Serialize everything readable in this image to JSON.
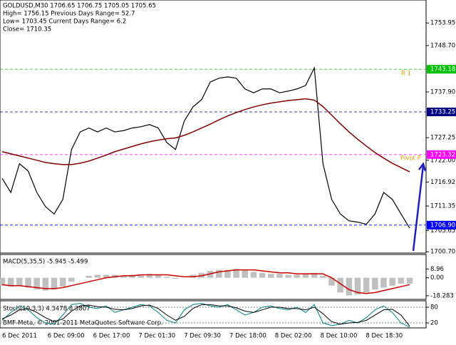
{
  "header": [
    "GOLDUSD,M30  1706.65 1706.75 1705.05 1705.65",
    "High= 1756.15    Previous Days Range= 52.7",
    "Low= 1703.45    Current Days Range= 6.2",
    "Close= 1710.35"
  ],
  "copyright": "BMF-Meta, © 2001-2011 MetaQuotes Software Corp.",
  "time_axis": [
    "6 Dec 2011",
    "6 Dec 09:00",
    "6 Dec 17:00",
    "7 Dec 01:30",
    "7 Dec 09:30",
    "7 Dec 18:00",
    "8 Dec 02:00",
    "8 Dec 10:00",
    "8 Dec 18:30"
  ],
  "chart_data": [
    {
      "type": "line",
      "ylim": [
        1700.4,
        1759.3
      ],
      "yticks": [
        1753.95,
        {
          "value": 1748.7,
          "label": "1748.70"
        },
        {
          "value": 1737.9,
          "label": "1737.90"
        },
        1727.25,
        {
          "value": 1722,
          "label": "1722.00"
        },
        1716.92,
        1711.35,
        1705.65,
        {
          "value": 1700.7,
          "label": "1700.70"
        }
      ],
      "price_levels": [
        {
          "value": 1743.18,
          "color": "#00c000"
        },
        {
          "value": 1733.25,
          "color": "#000080"
        },
        {
          "value": 1723.32,
          "color": "#ff00ff"
        },
        {
          "value": 1706.9,
          "label": "1706.90",
          "color": "#0000ff"
        }
      ],
      "annotations": [
        "R 1",
        "Pivot P"
      ],
      "series": [
        {
          "color": "#000000",
          "values": [
            1717.8,
            1714.5,
            1721.2,
            1719.5,
            1714.5,
            1711.2,
            1709.5,
            1712.9,
            1724.5,
            1728.6,
            1729.5,
            1728.6,
            1729.5,
            1728.6,
            1728.9,
            1729.5,
            1729.8,
            1730.3,
            1729.5,
            1726.1,
            1724.5,
            1731.1,
            1734.4,
            1736.1,
            1740.2,
            1741.1,
            1741.4,
            1741.1,
            1738.6,
            1737.7,
            1738.6,
            1738.6,
            1737.7,
            1738.1,
            1738.6,
            1739.4,
            1743.5,
            1721.2,
            1712.9,
            1709.5,
            1707.9,
            1707.6,
            1707.1,
            1709.5,
            1714.5,
            1712.9,
            1709.5,
            1706.2
          ]
        },
        {
          "color": "#800000",
          "values": [
            1724.0,
            1723.5,
            1723.0,
            1722.5,
            1722.0,
            1721.5,
            1721.2,
            1721.0,
            1721.0,
            1721.3,
            1721.8,
            1722.5,
            1723.2,
            1724.0,
            1724.6,
            1725.2,
            1725.8,
            1726.3,
            1726.7,
            1727.0,
            1727.2,
            1727.8,
            1728.6,
            1729.5,
            1730.4,
            1731.4,
            1732.3,
            1733.1,
            1733.8,
            1734.4,
            1734.9,
            1735.3,
            1735.6,
            1735.9,
            1736.1,
            1736.3,
            1736.0,
            1734.5,
            1732.5,
            1730.5,
            1728.6,
            1726.9,
            1725.3,
            1723.8,
            1722.5,
            1721.3,
            1720.3,
            1719.3
          ]
        }
      ]
    },
    {
      "type": "macd",
      "title": "MACD(5,35,5) -5.945 -5.499",
      "ylim": [
        -22,
        23.7
      ],
      "yticks": [
        8.96,
        {
          "value": 0,
          "label": "0.00"
        },
        -18.283
      ],
      "histogram": {
        "color": "#c0c0c0",
        "values": [
          -8,
          -9,
          -8,
          -10,
          -12,
          -13,
          -12,
          -9,
          -4,
          0,
          2,
          3,
          3,
          3,
          2,
          3,
          3,
          4,
          3,
          1,
          -1,
          0,
          3,
          5,
          7,
          8,
          8,
          9,
          8,
          6,
          5,
          4,
          4,
          3,
          3,
          4,
          5,
          2,
          -8,
          -15,
          -18,
          -17,
          -15,
          -12,
          -10,
          -8,
          -6,
          -6
        ]
      },
      "signal": {
        "color": "#cc0000",
        "values": [
          -7,
          -8,
          -8,
          -9,
          -10,
          -11,
          -11,
          -10,
          -8,
          -6,
          -4,
          -2,
          0,
          1,
          2,
          2,
          3,
          3,
          3,
          3,
          2,
          1,
          1,
          2,
          4,
          6,
          7,
          8,
          8,
          8,
          7,
          6,
          5,
          5,
          4,
          4,
          4,
          4,
          0,
          -6,
          -12,
          -15,
          -16,
          -15,
          -13,
          -11,
          -9,
          -7
        ]
      }
    },
    {
      "type": "stoch",
      "title": "Stoch(10,3,3) 4.3478 8.3807",
      "ylim": [
        1,
        104.5
      ],
      "yticks": [
        80,
        20
      ],
      "main": {
        "color": "#008080",
        "values": [
          30,
          60,
          85,
          70,
          40,
          20,
          15,
          50,
          90,
          95,
          80,
          75,
          85,
          60,
          70,
          80,
          90,
          85,
          60,
          30,
          20,
          70,
          90,
          95,
          85,
          80,
          90,
          70,
          50,
          60,
          80,
          85,
          75,
          70,
          80,
          60,
          90,
          20,
          10,
          15,
          30,
          20,
          40,
          70,
          85,
          60,
          20,
          4
        ]
      },
      "signal": {
        "color": "#000000",
        "values": [
          35,
          50,
          70,
          75,
          60,
          40,
          25,
          35,
          65,
          85,
          88,
          82,
          80,
          72,
          70,
          75,
          85,
          88,
          75,
          50,
          30,
          45,
          75,
          90,
          90,
          85,
          85,
          78,
          65,
          60,
          70,
          80,
          80,
          75,
          75,
          70,
          80,
          55,
          25,
          15,
          20,
          22,
          30,
          50,
          70,
          72,
          50,
          8
        ]
      }
    }
  ]
}
